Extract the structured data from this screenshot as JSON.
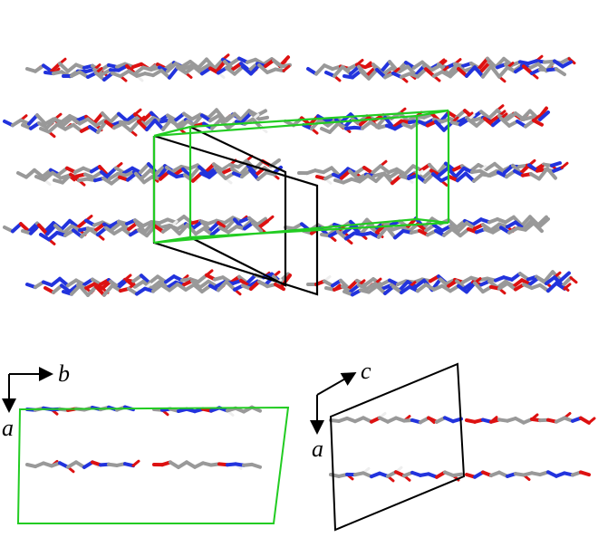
{
  "left_panel": {
    "axis_horizontal": "b",
    "axis_vertical": "a"
  },
  "right_panel": {
    "axis_horizontal": "c",
    "axis_vertical": "a"
  }
}
